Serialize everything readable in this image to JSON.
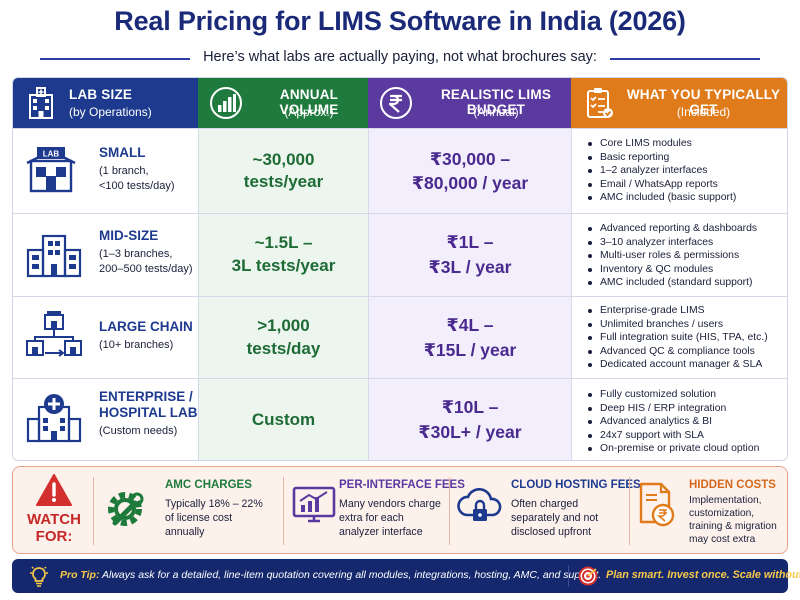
{
  "title": "Real Pricing for LIMS Software in India (2026)",
  "subtitle": "Here’s what labs are actually paying, not what brochures say:",
  "table": {
    "headers": [
      {
        "line1": "LAB SIZE",
        "line2": "(by Operations)",
        "icon": "hospital-building-icon"
      },
      {
        "line1": "ANNUAL VOLUME",
        "line2": "(Approx.)",
        "icon": "bar-chart-icon"
      },
      {
        "line1": "REALISTIC LIMS BUDGET",
        "line2": "(Annual)",
        "icon": "rupee-coin-icon"
      },
      {
        "line1": "WHAT YOU TYPICALLY GET",
        "line2": "(Included)",
        "icon": "checklist-icon"
      }
    ],
    "rows": [
      {
        "name": "SMALL",
        "desc": [
          "(1 branch,",
          "<100 tests/day)"
        ],
        "icon": "lab-store-icon",
        "volume": [
          "~30,000",
          "tests/year"
        ],
        "budget": [
          "₹30,000 –",
          "₹80,000 / year"
        ],
        "features": [
          "Core LIMS modules",
          "Basic reporting",
          "1–2 analyzer interfaces",
          "Email / WhatsApp reports",
          "AMC included (basic support)"
        ]
      },
      {
        "name": "MID-SIZE",
        "desc": [
          "(1–3 branches,",
          "200–500 tests/day)"
        ],
        "icon": "multi-building-icon",
        "volume": [
          "~1.5L –",
          "3L tests/year"
        ],
        "budget": [
          "₹1L –",
          "₹3L / year"
        ],
        "features": [
          "Advanced reporting & dashboards",
          "3–10 analyzer interfaces",
          "Multi-user roles & permissions",
          "Inventory & QC modules",
          "AMC included (standard support)"
        ]
      },
      {
        "name": "LARGE CHAIN",
        "desc": [
          "(10+ branches)"
        ],
        "icon": "network-labs-icon",
        "volume": [
          ">1,000",
          "tests/day"
        ],
        "budget": [
          "₹4L –",
          "₹15L / year"
        ],
        "features": [
          "Enterprise-grade LIMS",
          "Unlimited branches / users",
          "Full integration suite (HIS, TPA, etc.)",
          "Advanced QC & compliance tools",
          "Dedicated account manager & SLA"
        ]
      },
      {
        "name": [
          "ENTERPRISE /",
          "HOSPITAL LAB"
        ],
        "desc": [
          "(Custom needs)"
        ],
        "icon": "hospital-cross-icon",
        "volume": [
          "Custom"
        ],
        "budget": [
          "₹10L –",
          "₹30L+ / year"
        ],
        "features": [
          "Fully customized solution",
          "Deep HIS / ERP integration",
          "Advanced analytics & BI",
          "24x7 support with SLA",
          "On-premise or private cloud option"
        ]
      }
    ]
  },
  "watch": {
    "label": [
      "WATCH",
      "FOR:"
    ],
    "items": [
      {
        "title": "AMC CHARGES",
        "desc": [
          "Typically 18% – 22%",
          "of license cost",
          "annually"
        ],
        "icon": "gear-wrench-icon",
        "color": "#1e7a3a"
      },
      {
        "title": "PER-INTERFACE FEES",
        "desc": [
          "Many vendors charge",
          "extra for each",
          "analyzer interface"
        ],
        "icon": "monitor-chart-icon",
        "color": "#5b3aa0"
      },
      {
        "title": "CLOUD HOSTING FEES",
        "desc": [
          "Often charged",
          "separately and not",
          "disclosed upfront"
        ],
        "icon": "cloud-lock-icon",
        "color": "#1d3a8f"
      },
      {
        "title": "HIDDEN COSTS",
        "desc": [
          "Implementation,",
          "customization,",
          "training & migration",
          "may cost extra"
        ],
        "icon": "document-rupee-icon",
        "color": "#d2691e"
      }
    ]
  },
  "footer": {
    "tip_label": "Pro Tip:",
    "tip_text": "Always ask for a detailed, line-item quotation covering all modules, integrations, hosting, AMC, and support.",
    "slogan": "Plan smart. Invest once. Scale without limits."
  },
  "colors": {
    "navy": "#1d3a8f",
    "green": "#1f7a3d",
    "purple": "#5b3aa0",
    "orange": "#e07b1b",
    "alert": "#c62828"
  }
}
